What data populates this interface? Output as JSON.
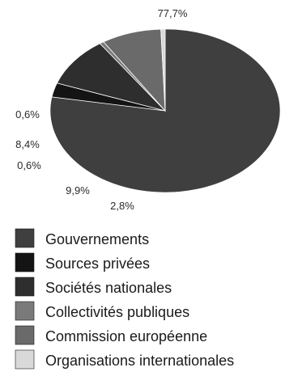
{
  "chart_data": {
    "type": "pie",
    "title": "",
    "slices": [
      {
        "name": "Gouvernements",
        "value": 77.7,
        "label": "77,7%",
        "color": "#3f3f3f"
      },
      {
        "name": "Sources privées",
        "value": 2.8,
        "label": "2,8%",
        "color": "#141414"
      },
      {
        "name": "Sociétés nationales",
        "value": 9.9,
        "label": "9,9%",
        "color": "#2e2e2e"
      },
      {
        "name": "Collectivités publiques",
        "value": 0.6,
        "label": "0,6%",
        "color": "#7a7a7a"
      },
      {
        "name": "Commission européenne",
        "value": 8.4,
        "label": "8,4%",
        "color": "#6a6a6a"
      },
      {
        "name": "Organisations internationales",
        "value": 0.6,
        "label": "0,6%",
        "color": "#d9d9d9"
      }
    ],
    "legend_position": "bottom"
  }
}
